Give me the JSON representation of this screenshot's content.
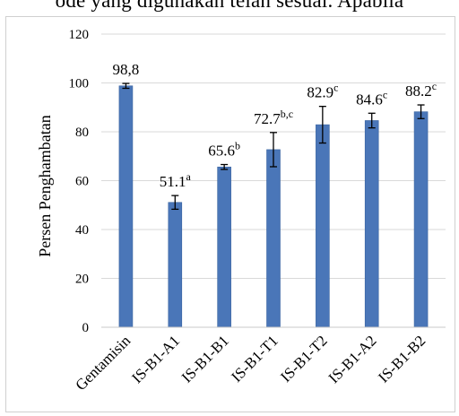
{
  "header_text": "ode yang digunakan telah sesuai. Apabila",
  "chart_data": {
    "type": "bar",
    "title": "",
    "xlabel": "",
    "ylabel": "Persen  Penghambatan",
    "ylim": [
      0,
      120
    ],
    "yticks": [
      0,
      20,
      40,
      60,
      80,
      100,
      120
    ],
    "grid": true,
    "legend": "none",
    "bar_color": "#4a76b8",
    "categories": [
      "Gentamisin",
      "IS-B1-A1",
      "IS-B1-B1",
      "IS-B1-T1",
      "IS-B1-T2",
      "IS-B1-A2",
      "IS-B1-B2"
    ],
    "values": [
      98.8,
      51.1,
      65.6,
      72.7,
      82.9,
      84.6,
      88.2
    ],
    "errors": [
      1.0,
      2.8,
      1.0,
      7.0,
      7.5,
      3.0,
      2.8
    ],
    "labels": [
      {
        "text": "98,8",
        "sup": ""
      },
      {
        "text": "51.1",
        "sup": "a"
      },
      {
        "text": "65.6",
        "sup": "b"
      },
      {
        "text": "72.7",
        "sup": "b,c"
      },
      {
        "text": "82.9",
        "sup": "c"
      },
      {
        "text": "84.6",
        "sup": "c"
      },
      {
        "text": "88.2",
        "sup": "c"
      }
    ]
  }
}
